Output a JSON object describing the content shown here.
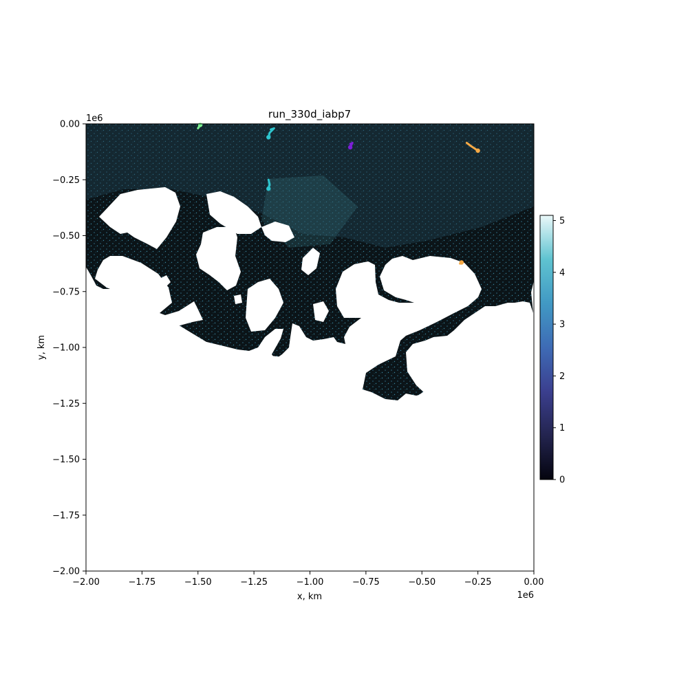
{
  "chart_data": {
    "type": "heatmap",
    "title": "run_330d_iabp7",
    "xlabel": "x, km",
    "ylabel": "y, km",
    "xlim": [
      -2000000,
      0
    ],
    "ylim": [
      -2000000,
      0
    ],
    "x_ticks": [
      -2.0,
      -1.75,
      -1.5,
      -1.25,
      -1.0,
      -0.75,
      -0.5,
      -0.25,
      0.0
    ],
    "y_ticks": [
      0.0,
      -0.25,
      -0.5,
      -0.75,
      -1.0,
      -1.25,
      -1.5,
      -1.75,
      -2.0
    ],
    "x_tick_labels": [
      "−2.00",
      "−1.75",
      "−1.50",
      "−1.25",
      "−1.00",
      "−0.75",
      "−0.50",
      "−0.25",
      "0.00"
    ],
    "y_tick_labels": [
      "0.00",
      "−0.25",
      "−0.50",
      "−0.75",
      "−1.00",
      "−1.25",
      "−1.50",
      "−1.75",
      "−2.00"
    ],
    "x_offset_label": "1e6",
    "y_offset_label": "1e6",
    "colorbar": {
      "min": 0,
      "max": 5.1,
      "ticks": [
        0,
        1,
        2,
        3,
        4,
        5
      ],
      "tick_labels": [
        "0",
        "1",
        "2",
        "3",
        "4",
        "5"
      ],
      "colormap": "ice",
      "stops": [
        "#04040e",
        "#23244f",
        "#3b3f8f",
        "#3e6bb5",
        "#4199c4",
        "#5fc3d0",
        "#eaf8f9"
      ]
    },
    "ocean_color": "#0b1418",
    "land_color": "#ffffff",
    "trajectories": [
      {
        "color": "#7cf08f",
        "points": [
          [
            -1500000,
            -20000
          ],
          [
            -1490000,
            -5000
          ]
        ]
      },
      {
        "color": "#2ec6cf",
        "points": [
          [
            -1175000,
            -25000
          ],
          [
            -1160000,
            -20000
          ],
          [
            -1180000,
            -40000
          ],
          [
            -1185000,
            -60000
          ]
        ]
      },
      {
        "color": "#2ec6cf",
        "points": [
          [
            -1185000,
            -250000
          ],
          [
            -1180000,
            -270000
          ],
          [
            -1185000,
            -290000
          ]
        ]
      },
      {
        "color": "#7b1fd6",
        "points": [
          [
            -820000,
            -90000
          ],
          [
            -810000,
            -85000
          ],
          [
            -820000,
            -105000
          ]
        ]
      },
      {
        "color": "#f5a946",
        "points": [
          [
            -300000,
            -85000
          ],
          [
            -280000,
            -100000
          ],
          [
            -250000,
            -120000
          ]
        ]
      },
      {
        "color": "#f5a946",
        "points": [
          [
            -330000,
            -625000
          ],
          [
            -323000,
            -620000
          ]
        ]
      }
    ]
  }
}
